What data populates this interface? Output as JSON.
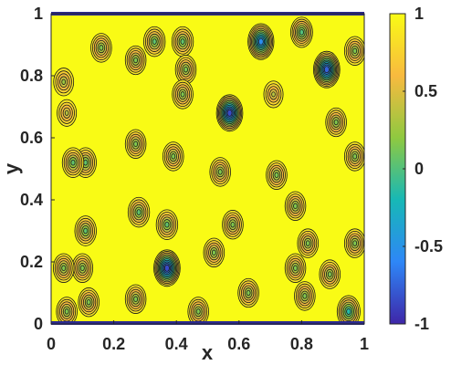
{
  "chart_data": {
    "type": "heatmap",
    "subtype": "filled-contour",
    "title": "",
    "xlabel": "x",
    "ylabel": "y",
    "xlim": [
      0,
      1
    ],
    "ylim": [
      0,
      1
    ],
    "xticks": [
      "0",
      "0.2",
      "0.4",
      "0.6",
      "0.8",
      "1"
    ],
    "yticks": [
      "0",
      "0.2",
      "0.4",
      "0.6",
      "0.8",
      "1"
    ],
    "colorbar": {
      "range": [
        -1,
        1
      ],
      "ticks": [
        "-1",
        "-0.5",
        "0",
        "0.5",
        "1"
      ],
      "colormap": "parula",
      "colors": [
        "#3e26a8",
        "#2e87f7",
        "#17b8b6",
        "#8fc940",
        "#f8ba3f",
        "#f9fb15"
      ]
    },
    "background_level": 1,
    "minima": [
      {
        "x": 0.27,
        "y": 0.58,
        "value": 0.15
      },
      {
        "x": 0.39,
        "y": 0.54,
        "value": 0.15
      },
      {
        "x": 0.28,
        "y": 0.36,
        "value": 0.05
      },
      {
        "x": 0.37,
        "y": 0.32,
        "value": 0.05
      },
      {
        "x": 0.57,
        "y": 0.68,
        "value": -0.85
      },
      {
        "x": 0.37,
        "y": 0.18,
        "value": -0.85
      },
      {
        "x": 0.67,
        "y": 0.91,
        "value": -0.55
      },
      {
        "x": 0.88,
        "y": 0.82,
        "value": -0.75
      },
      {
        "x": 0.33,
        "y": 0.91,
        "value": 0.05
      },
      {
        "x": 0.42,
        "y": 0.91,
        "value": 0.05
      },
      {
        "x": 0.8,
        "y": 0.94,
        "value": 0.0
      },
      {
        "x": 0.16,
        "y": 0.89,
        "value": 0.15
      },
      {
        "x": 0.43,
        "y": 0.82,
        "value": 0.15
      },
      {
        "x": 0.42,
        "y": 0.74,
        "value": 0.15
      },
      {
        "x": 0.27,
        "y": 0.85,
        "value": 0.15
      },
      {
        "x": 0.11,
        "y": 0.52,
        "value": 0.05
      },
      {
        "x": 0.07,
        "y": 0.52,
        "value": 0.05
      },
      {
        "x": 0.11,
        "y": 0.3,
        "value": 0.05
      },
      {
        "x": 0.1,
        "y": 0.18,
        "value": 0.15
      },
      {
        "x": 0.54,
        "y": 0.49,
        "value": 0.15
      },
      {
        "x": 0.72,
        "y": 0.48,
        "value": 0.15
      },
      {
        "x": 0.58,
        "y": 0.32,
        "value": 0.15
      },
      {
        "x": 0.78,
        "y": 0.38,
        "value": 0.15
      },
      {
        "x": 0.52,
        "y": 0.23,
        "value": 0.15
      },
      {
        "x": 0.82,
        "y": 0.26,
        "value": 0.15
      },
      {
        "x": 0.89,
        "y": 0.16,
        "value": 0.15
      },
      {
        "x": 0.78,
        "y": 0.18,
        "value": 0.15
      },
      {
        "x": 0.91,
        "y": 0.65,
        "value": 0.15
      },
      {
        "x": 0.97,
        "y": 0.88,
        "value": 0.15
      },
      {
        "x": 0.97,
        "y": 0.54,
        "value": 0.15
      },
      {
        "x": 0.97,
        "y": 0.26,
        "value": 0.15
      },
      {
        "x": 0.04,
        "y": 0.18,
        "value": 0.15
      },
      {
        "x": 0.04,
        "y": 0.78,
        "value": 0.25
      },
      {
        "x": 0.12,
        "y": 0.07,
        "value": 0.15
      },
      {
        "x": 0.27,
        "y": 0.08,
        "value": 0.15
      },
      {
        "x": 0.47,
        "y": 0.04,
        "value": 0.15
      },
      {
        "x": 0.63,
        "y": 0.1,
        "value": 0.15
      },
      {
        "x": 0.81,
        "y": 0.09,
        "value": 0.15
      },
      {
        "x": 0.95,
        "y": 0.04,
        "value": -0.15
      },
      {
        "x": 0.05,
        "y": 0.04,
        "value": 0.15
      },
      {
        "x": 0.71,
        "y": 0.74,
        "value": 0.35
      },
      {
        "x": 0.05,
        "y": 0.68,
        "value": 0.35
      }
    ]
  }
}
